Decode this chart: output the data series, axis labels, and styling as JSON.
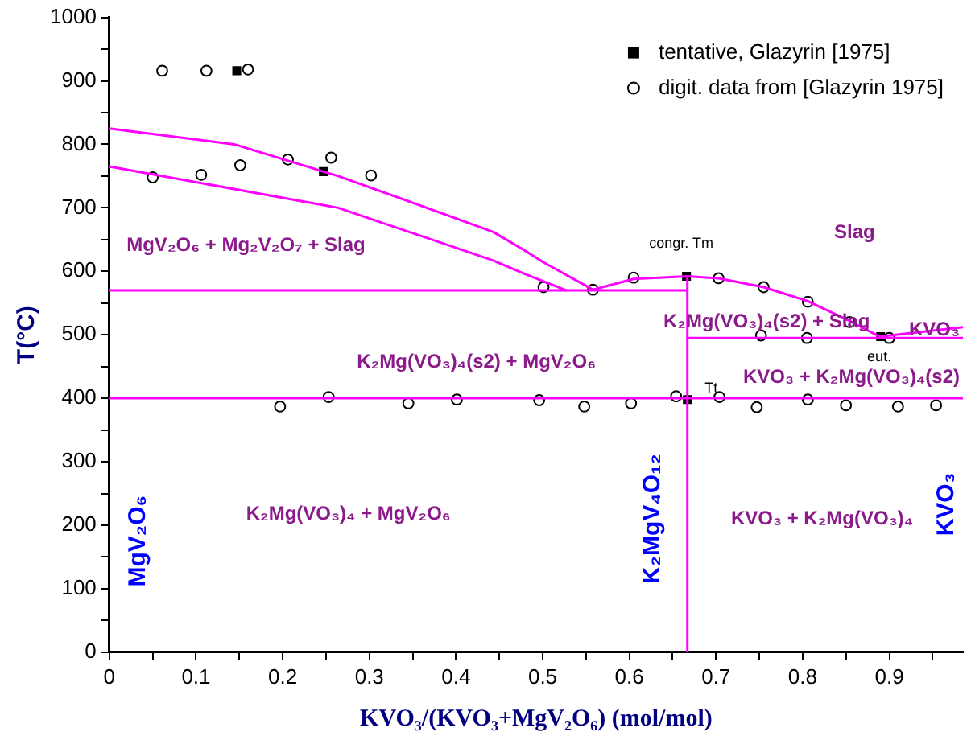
{
  "chart_data": {
    "type": "scatter",
    "xlabel": "KVO₃/(KVO₃+MgV₂O₆) (mol/mol)",
    "ylabel": "T(°C)",
    "xlim": [
      0,
      0.985
    ],
    "xticks": [
      0,
      {
        "value": 0.05,
        "label": null
      },
      0.1,
      {
        "value": 0.15,
        "label": null
      },
      0.2,
      {
        "value": 0.25,
        "label": null
      },
      0.3,
      {
        "value": 0.35,
        "label": null
      },
      0.4,
      {
        "value": 0.45,
        "label": null
      },
      0.5,
      {
        "value": 0.55,
        "label": null
      },
      0.6,
      {
        "value": 0.65,
        "label": null
      },
      0.7,
      {
        "value": 0.75,
        "label": null
      },
      0.8,
      {
        "value": 0.85,
        "label": null
      },
      0.9,
      {
        "value": 0.95,
        "label": null
      }
    ],
    "ylim": [
      0,
      1000
    ],
    "yticks": [
      0,
      {
        "value": 50,
        "label": null
      },
      100,
      {
        "value": 150,
        "label": null
      },
      200,
      {
        "value": 250,
        "label": null
      },
      300,
      {
        "value": 350,
        "label": null
      },
      400,
      {
        "value": 450,
        "label": null
      },
      500,
      {
        "value": 550,
        "label": null
      },
      600,
      {
        "value": 650,
        "label": null
      },
      700,
      {
        "value": 750,
        "label": null
      },
      800,
      {
        "value": 850,
        "label": null
      },
      900,
      {
        "value": 950,
        "label": null
      },
      1000
    ],
    "legend": "top right",
    "marker": "none",
    "line_style": "solid",
    "series": [
      {
        "type": "line",
        "color": "#ff00ff",
        "x": [
          0,
          0.144,
          0.264,
          0.35,
          0.443,
          0.479,
          0.5,
          0.558
        ],
        "values": [
          825,
          800,
          750,
          708,
          662,
          633,
          615,
          571
        ]
      },
      {
        "type": "line",
        "color": "#ff00ff",
        "x": [
          0,
          0.264,
          0.443,
          0.479,
          0.527
        ],
        "values": [
          765,
          700,
          617,
          596,
          570
        ]
      },
      {
        "type": "line",
        "color": "#ff00ff",
        "x": [
          0,
          0.667
        ],
        "values": [
          570,
          570
        ]
      },
      {
        "type": "line",
        "color": "#ff00ff",
        "x": [
          0.558,
          0.605,
          0.667,
          0.703,
          0.755,
          0.806,
          0.854,
          0.889,
          0.985
        ],
        "values": [
          571,
          588,
          592,
          589,
          575,
          553,
          522,
          497,
          512
        ]
      },
      {
        "type": "line",
        "color": "#ff00ff",
        "x": [
          0.667,
          0.985
        ],
        "values": [
          495,
          495
        ]
      },
      {
        "type": "line",
        "color": "#ff00ff",
        "x": [
          0,
          0.985
        ],
        "values": [
          400,
          400
        ]
      },
      {
        "type": "line",
        "color": "#ff00ff",
        "x": [
          0.667,
          0.667
        ],
        "values": [
          0,
          592
        ]
      },
      {
        "type": "scatter",
        "name": "tentative, Glazyrin [1975]",
        "color": "#000000",
        "marker": "square",
        "x": [
          0.147,
          0.247,
          0.666,
          0.89,
          0.667
        ],
        "values": [
          916,
          757,
          592,
          497,
          398
        ]
      },
      {
        "type": "scatter",
        "name": "digit. data from [Glazyrin 1975]",
        "color": "#000000",
        "marker": "circle",
        "x": [
          0.061,
          0.112,
          0.16,
          0.05,
          0.106,
          0.151,
          0.206,
          0.256,
          0.302,
          0.501,
          0.558,
          0.605,
          0.703,
          0.755,
          0.806,
          0.854,
          0.752,
          0.805,
          0.9,
          0.197,
          0.253,
          0.345,
          0.401,
          0.496,
          0.548,
          0.602,
          0.654,
          0.704,
          0.747,
          0.806,
          0.85,
          0.91,
          0.954
        ],
        "values": [
          916,
          916,
          918,
          748,
          752,
          767,
          776,
          779,
          751,
          575,
          571,
          590,
          589,
          575,
          552,
          520,
          499,
          495,
          495,
          387,
          402,
          392,
          398,
          397,
          387,
          392,
          403,
          402,
          386,
          398,
          389,
          387,
          389
        ]
      }
    ],
    "annotations": [
      "MgV₂O₆",
      "K₂MgV₄O₁₂",
      "KVO₃",
      "MgV₂O₆ + Mg₂V₂O₇ + Slag",
      "Slag",
      "K₂Mg(VO₃)₄(s2) + MgV₂O₆",
      "K₂Mg(VO₃)₄(s2) + Slag",
      "KVO₃ + K₂Mg(VO₃)₄(s2)",
      "KVO₃",
      "K₂Mg(VO₃)₄ + MgV₂O₆",
      "KVO₃ + K₂Mg(VO₃)₄",
      "congr. Tm",
      "eut.",
      "Tt"
    ]
  }
}
